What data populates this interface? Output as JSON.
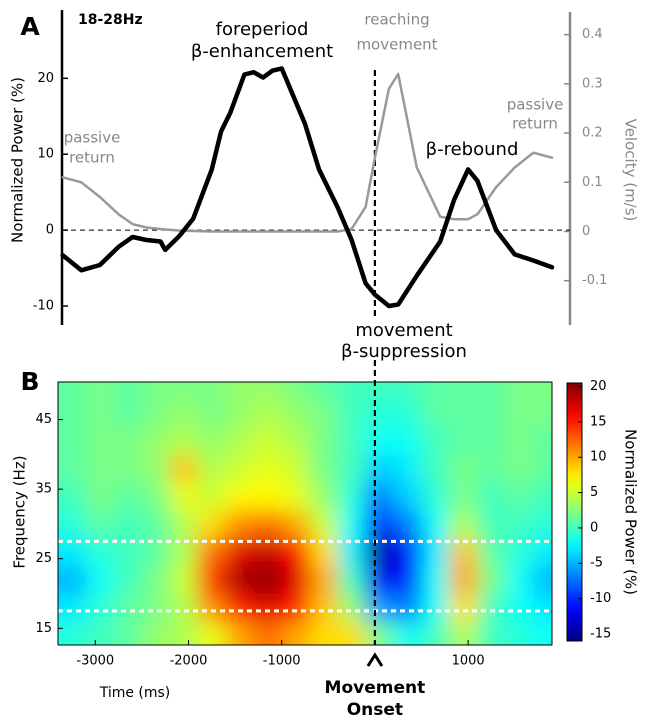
{
  "chart_data": [
    {
      "type": "line",
      "panel_label": "A",
      "y_label": "Normalized Power (%)",
      "y2_label": "Velocity (m/s)",
      "annotations": [
        "18-28Hz",
        "foreperiod",
        "β-enhancement",
        "reaching",
        "movement",
        "passive",
        "return",
        "passive",
        "return",
        "β-rebound",
        "movement",
        "β-suppression"
      ],
      "x": [
        -3350,
        -3150,
        -2950,
        -2750,
        -2600,
        -2450,
        -2300,
        -2250,
        -2100,
        -1950,
        -1750,
        -1650,
        -1550,
        -1400,
        -1300,
        -1200,
        -1100,
        -1000,
        -900,
        -750,
        -600,
        -400,
        -250,
        -100,
        0,
        150,
        250,
        450,
        700,
        850,
        1000,
        1100,
        1300,
        1500,
        1700,
        1900
      ],
      "xlim": [
        -3400,
        1900
      ],
      "series": [
        {
          "color": "#000000",
          "values": [
            -3.3,
            -5.3,
            -4.6,
            -2.2,
            -0.9,
            -1.3,
            -1.5,
            -2.6,
            -0.8,
            1.5,
            8,
            13,
            15.5,
            20.5,
            20.8,
            20.1,
            21,
            21.3,
            18.4,
            14,
            8,
            3,
            -1.3,
            -7,
            -8.5,
            -10,
            -9.8,
            -6,
            -1.5,
            4,
            8,
            6.5,
            0,
            -3.2,
            -4,
            -4.9
          ]
        },
        {
          "color": "#999999",
          "axis": "y2",
          "values": [
            0.11,
            0.1,
            0.07,
            0.035,
            0.015,
            0.008,
            0.005,
            0.004,
            0.002,
            0.001,
            0,
            0,
            0,
            0,
            0,
            0,
            0,
            0,
            0,
            0,
            0,
            0,
            0.005,
            0.05,
            0.15,
            0.29,
            0.32,
            0.13,
            0.03,
            0.025,
            0.025,
            0.035,
            0.09,
            0.13,
            0.16,
            0.15
          ]
        }
      ],
      "ylim": [
        -12.5,
        29
      ],
      "yticks": [
        -10,
        0,
        10,
        20
      ],
      "y2lim": [
        -0.19,
        0.45
      ],
      "y2ticks": [
        -0.1,
        0,
        0.1,
        0.2,
        0.3,
        0.4
      ],
      "hline": 0,
      "vline": 0
    },
    {
      "type": "heatmap",
      "panel_label": "B",
      "x_label": "Time (ms)",
      "y_label": "Frequency (Hz)",
      "colorbar_label": "Normalized Power (%)",
      "annotations": [
        "Movement",
        "Onset"
      ],
      "x": [
        -3250,
        -2950,
        -2650,
        -2350,
        -2050,
        -1750,
        -1450,
        -1150,
        -850,
        -550,
        -250,
        50,
        350,
        650,
        950,
        1250,
        1550,
        1850
      ],
      "y": [
        14,
        18,
        22,
        26,
        30,
        34,
        38,
        42,
        46,
        50
      ],
      "values": [
        [
          -1,
          0,
          1,
          3,
          4,
          6,
          10,
          12,
          10,
          8,
          8,
          2,
          -2,
          0,
          4,
          0,
          -1,
          -2
        ],
        [
          -3,
          -1,
          1,
          2,
          4,
          11,
          15,
          17,
          15,
          9,
          3,
          -6,
          -7,
          -2,
          8,
          0,
          -2,
          -3
        ],
        [
          -5,
          -2,
          0,
          2,
          5,
          14,
          19,
          20,
          17,
          10,
          0,
          -12,
          -10,
          -2,
          10,
          2,
          -2,
          -5
        ],
        [
          -3,
          -1,
          0,
          1,
          4,
          12,
          17,
          18,
          16,
          8,
          -3,
          -15,
          -11,
          -3,
          9,
          1,
          -1,
          -3
        ],
        [
          -1,
          1,
          0,
          1,
          4,
          8,
          11,
          12,
          10,
          5,
          -2,
          -10,
          -7,
          -2,
          4,
          0,
          0,
          -1
        ],
        [
          0,
          2,
          1,
          2,
          6,
          5,
          7,
          7,
          6,
          3,
          -1,
          -7,
          -4,
          -1,
          2,
          0,
          1,
          0
        ],
        [
          1,
          2,
          2,
          3,
          9,
          4,
          5,
          6,
          5,
          2,
          0,
          -4,
          -3,
          0,
          2,
          1,
          2,
          1
        ],
        [
          1,
          2,
          2,
          3,
          4,
          3,
          4,
          5,
          4,
          2,
          0,
          -2,
          -2,
          0,
          1,
          1,
          2,
          1
        ],
        [
          1,
          2,
          1,
          2,
          3,
          2,
          3,
          4,
          3,
          2,
          0,
          -1,
          -1,
          1,
          1,
          1,
          2,
          2
        ],
        [
          1,
          2,
          1,
          2,
          2,
          2,
          3,
          3,
          2,
          1,
          0,
          0,
          0,
          1,
          1,
          1,
          2,
          2
        ]
      ],
      "xlim": [
        -3400,
        1900
      ],
      "xticks": [
        -3000,
        -2000,
        -1000,
        1000
      ],
      "ylim": [
        12.6,
        50.4
      ],
      "yticks": [
        15,
        25,
        35,
        45
      ],
      "clim": [
        -16,
        20.5
      ],
      "cticks": [
        -15,
        -10,
        -5,
        0,
        5,
        10,
        15,
        20
      ],
      "hlines": [
        17.5,
        27.5
      ],
      "vline": 0
    }
  ]
}
